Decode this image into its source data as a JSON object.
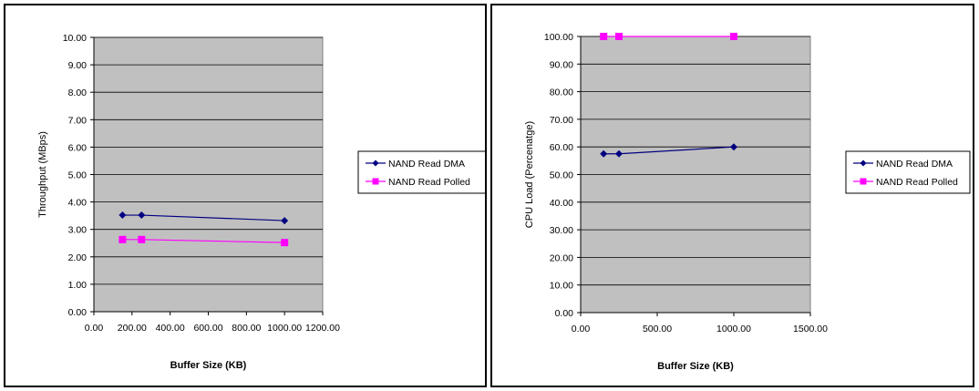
{
  "chart_data": [
    {
      "type": "line",
      "title": "",
      "xlabel": "Buffer Size (KB)",
      "ylabel": "Throughput (MBps)",
      "xlim": [
        0,
        1200
      ],
      "ylim": [
        0,
        10
      ],
      "x_ticks": [
        "0.00",
        "200.00",
        "400.00",
        "600.00",
        "800.00",
        "1000.00",
        "1200.00"
      ],
      "y_ticks": [
        "0.00",
        "1.00",
        "2.00",
        "3.00",
        "4.00",
        "5.00",
        "6.00",
        "7.00",
        "8.00",
        "9.00",
        "10.00"
      ],
      "x_tick_values": [
        0,
        200,
        400,
        600,
        800,
        1000,
        1200
      ],
      "y_tick_values": [
        0,
        1,
        2,
        3,
        4,
        5,
        6,
        7,
        8,
        9,
        10
      ],
      "grid": "horizontal",
      "legend": "right",
      "plot_bg": "#c0c0c0",
      "series": [
        {
          "name": "NAND Read DMA",
          "color": "#000080",
          "marker": "diamond",
          "x": [
            150,
            250,
            1000
          ],
          "y": [
            3.52,
            3.52,
            3.32
          ]
        },
        {
          "name": "NAND Read Polled",
          "color": "#ff00ff",
          "marker": "square",
          "x": [
            150,
            250,
            1000
          ],
          "y": [
            2.63,
            2.63,
            2.52
          ]
        }
      ]
    },
    {
      "type": "line",
      "title": "",
      "xlabel": "Buffer Size (KB)",
      "ylabel": "CPU Load (Percenatge)",
      "xlim": [
        0,
        1500
      ],
      "ylim": [
        0,
        100
      ],
      "x_ticks": [
        "0.00",
        "500.00",
        "1000.00",
        "1500.00"
      ],
      "y_ticks": [
        "0.00",
        "10.00",
        "20.00",
        "30.00",
        "40.00",
        "50.00",
        "60.00",
        "70.00",
        "80.00",
        "90.00",
        "100.00"
      ],
      "x_tick_values": [
        0,
        500,
        1000,
        1500
      ],
      "y_tick_values": [
        0,
        10,
        20,
        30,
        40,
        50,
        60,
        70,
        80,
        90,
        100
      ],
      "grid": "horizontal",
      "legend": "right",
      "plot_bg": "#c0c0c0",
      "series": [
        {
          "name": "NAND Read DMA",
          "color": "#000080",
          "marker": "diamond",
          "x": [
            150,
            250,
            1000
          ],
          "y": [
            57.5,
            57.5,
            60.0
          ]
        },
        {
          "name": "NAND Read Polled",
          "color": "#ff00ff",
          "marker": "square",
          "x": [
            150,
            250,
            1000
          ],
          "y": [
            100,
            100,
            100
          ]
        }
      ]
    }
  ]
}
